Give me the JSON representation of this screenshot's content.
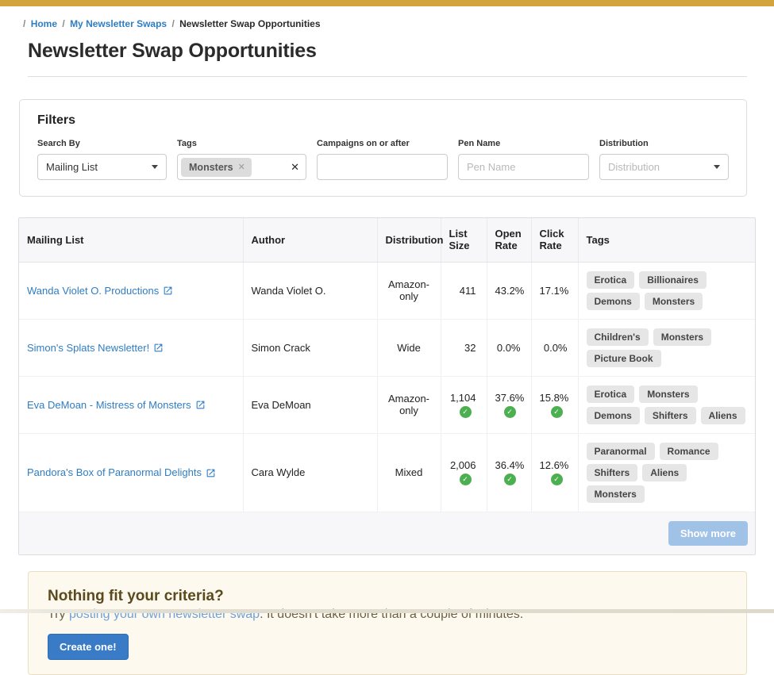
{
  "breadcrumb": {
    "separator": "/",
    "items": [
      {
        "label": "Home"
      },
      {
        "label": "My Newsletter Swaps"
      },
      {
        "label": "Newsletter Swap Opportunities"
      }
    ]
  },
  "page": {
    "title": "Newsletter Swap Opportunities"
  },
  "filters": {
    "heading": "Filters",
    "search_by": {
      "label": "Search By",
      "value": "Mailing List"
    },
    "tags": {
      "label": "Tags",
      "chips": [
        "Monsters"
      ],
      "chip_remove_icon": "✕",
      "clear_icon": "✕"
    },
    "campaigns": {
      "label": "Campaigns on or after",
      "value": "",
      "placeholder": ""
    },
    "pen_name": {
      "label": "Pen Name",
      "value": "",
      "placeholder": "Pen Name"
    },
    "distribution": {
      "label": "Distribution",
      "placeholder": "Distribution"
    }
  },
  "table": {
    "columns": [
      "Mailing List",
      "Author",
      "Distribution",
      "List Size",
      "Open Rate",
      "Click Rate",
      "Tags"
    ],
    "rows": [
      {
        "mailing_list": "Wanda Violet O. Productions",
        "author": "Wanda Violet O.",
        "distribution": "Amazon-only",
        "list_size": "411",
        "list_size_check": false,
        "open_rate": "43.2%",
        "open_rate_check": false,
        "click_rate": "17.1%",
        "click_rate_check": false,
        "tags": [
          "Erotica",
          "Billionaires",
          "Demons",
          "Monsters"
        ]
      },
      {
        "mailing_list": "Simon's Splats Newsletter!",
        "author": "Simon Crack",
        "distribution": "Wide",
        "list_size": "32",
        "list_size_check": false,
        "open_rate": "0.0%",
        "open_rate_check": false,
        "click_rate": "0.0%",
        "click_rate_check": false,
        "tags": [
          "Children's",
          "Monsters",
          "Picture Book"
        ]
      },
      {
        "mailing_list": "Eva DeMoan - Mistress of Monsters",
        "author": "Eva DeMoan",
        "distribution": "Amazon-only",
        "list_size": "1,104",
        "list_size_check": true,
        "open_rate": "37.6%",
        "open_rate_check": true,
        "click_rate": "15.8%",
        "click_rate_check": true,
        "tags": [
          "Erotica",
          "Monsters",
          "Demons",
          "Shifters",
          "Aliens"
        ]
      },
      {
        "mailing_list": "Pandora's Box of Paranormal Delights",
        "author": "Cara Wylde",
        "distribution": "Mixed",
        "list_size": "2,006",
        "list_size_check": true,
        "open_rate": "36.4%",
        "open_rate_check": true,
        "click_rate": "12.6%",
        "click_rate_check": true,
        "tags": [
          "Paranormal",
          "Romance",
          "Shifters",
          "Aliens",
          "Monsters"
        ]
      }
    ],
    "show_more_label": "Show more"
  },
  "cta": {
    "heading": "Nothing fit your criteria?",
    "body_prefix": "Try ",
    "link_text": "posting your own newsletter swap",
    "body_suffix": ". It doesn't take more than a couple of minutes.",
    "button_label": "Create one!"
  },
  "colors": {
    "topbar": "#d3a43c",
    "link": "#2f7dc3",
    "tag_bg": "#e6e6e6",
    "check_green": "#4caf50",
    "show_more_bg": "#9fc2e6",
    "primary_button": "#3a7bc8",
    "cta_bg": "#fdf9ee",
    "cta_border": "#eadfc2",
    "cta_heading": "#5a4a1e",
    "cta_text": "#6c6146",
    "cta_link": "#6fa1d9"
  }
}
